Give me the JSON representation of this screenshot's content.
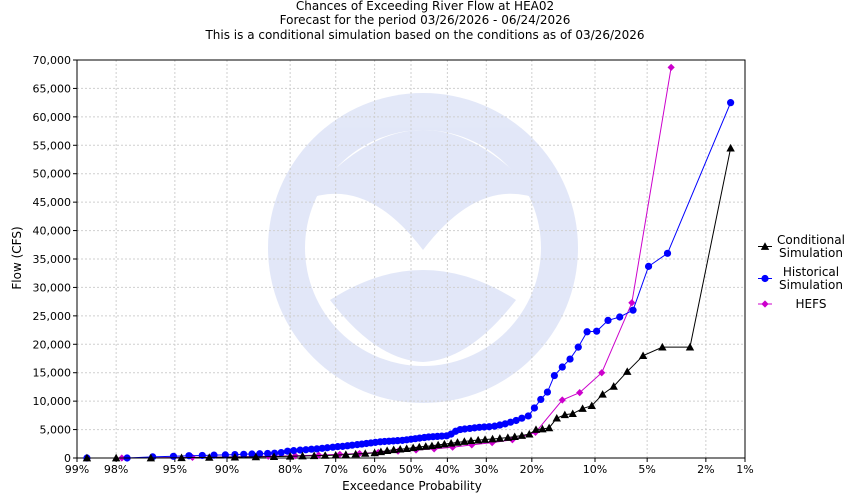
{
  "chart_data": {
    "type": "scatter",
    "title": "Chances of Exceeding River Flow at HEA02",
    "subtitle": "Forecast for the period 03/26/2026 - 06/24/2026",
    "subtitle2": "This is a conditional simulation based on the conditions as of 03/26/2026",
    "xlabel": "Exceedance Probability",
    "ylabel": "Flow (CFS)",
    "x_scale": "normal-probability",
    "x_ticks": [
      {
        "p": 99,
        "label": "99%"
      },
      {
        "p": 98,
        "label": "98%"
      },
      {
        "p": 95,
        "label": "95%"
      },
      {
        "p": 90,
        "label": "90%"
      },
      {
        "p": 80,
        "label": "80%"
      },
      {
        "p": 70,
        "label": "70%"
      },
      {
        "p": 60,
        "label": "60%"
      },
      {
        "p": 50,
        "label": "50%"
      },
      {
        "p": 40,
        "label": "40%"
      },
      {
        "p": 30,
        "label": "30%"
      },
      {
        "p": 20,
        "label": "20%"
      },
      {
        "p": 10,
        "label": "10%"
      },
      {
        "p": 5,
        "label": "5%"
      },
      {
        "p": 2,
        "label": "2%"
      },
      {
        "p": 1,
        "label": "1%"
      }
    ],
    "ylim": [
      0,
      70000
    ],
    "y_ticks": [
      {
        "v": 0,
        "label": "0"
      },
      {
        "v": 5000,
        "label": "5,000"
      },
      {
        "v": 10000,
        "label": "10,000"
      },
      {
        "v": 15000,
        "label": "15,000"
      },
      {
        "v": 20000,
        "label": "20,000"
      },
      {
        "v": 25000,
        "label": "25,000"
      },
      {
        "v": 30000,
        "label": "30,000"
      },
      {
        "v": 35000,
        "label": "35,000"
      },
      {
        "v": 40000,
        "label": "40,000"
      },
      {
        "v": 45000,
        "label": "45,000"
      },
      {
        "v": 50000,
        "label": "50,000"
      },
      {
        "v": 55000,
        "label": "55,000"
      },
      {
        "v": 60000,
        "label": "60,000"
      },
      {
        "v": 65000,
        "label": "65,000"
      },
      {
        "v": 70000,
        "label": "70,000"
      }
    ],
    "grid": true,
    "legend_position": "right",
    "series": [
      {
        "name": "Conditional Simulation",
        "legend_lines": [
          "Conditional",
          "Simulation"
        ],
        "color": "#000000",
        "marker": "triangle",
        "points": [
          [
            98.8,
            0
          ],
          [
            98.0,
            0
          ],
          [
            96.5,
            0
          ],
          [
            94.5,
            50
          ],
          [
            92.0,
            100
          ],
          [
            89.0,
            150
          ],
          [
            86.0,
            200
          ],
          [
            83.0,
            250
          ],
          [
            80.0,
            300
          ],
          [
            77.5,
            350
          ],
          [
            75.0,
            400
          ],
          [
            72.5,
            450
          ],
          [
            70.0,
            500
          ],
          [
            67.5,
            600
          ],
          [
            65.0,
            700
          ],
          [
            62.5,
            800
          ],
          [
            60.0,
            900
          ],
          [
            58.3,
            1100
          ],
          [
            56.6,
            1300
          ],
          [
            54.8,
            1450
          ],
          [
            53.0,
            1550
          ],
          [
            51.2,
            1650
          ],
          [
            49.4,
            1800
          ],
          [
            47.7,
            1950
          ],
          [
            45.9,
            2050
          ],
          [
            44.2,
            2150
          ],
          [
            42.5,
            2300
          ],
          [
            40.8,
            2450
          ],
          [
            39.0,
            2600
          ],
          [
            37.3,
            2750
          ],
          [
            35.5,
            2900
          ],
          [
            33.8,
            3050
          ],
          [
            32.0,
            3150
          ],
          [
            30.3,
            3250
          ],
          [
            28.5,
            3350
          ],
          [
            26.8,
            3450
          ],
          [
            25.0,
            3600
          ],
          [
            23.5,
            3750
          ],
          [
            22.0,
            3950
          ],
          [
            20.5,
            4200
          ],
          [
            19.2,
            5000
          ],
          [
            18.0,
            5100
          ],
          [
            16.8,
            5300
          ],
          [
            15.5,
            7000
          ],
          [
            14.2,
            7600
          ],
          [
            13.0,
            7800
          ],
          [
            11.6,
            8700
          ],
          [
            10.4,
            9200
          ],
          [
            9.1,
            11200
          ],
          [
            7.9,
            12600
          ],
          [
            6.6,
            15200
          ],
          [
            5.3,
            18000
          ],
          [
            4.0,
            19500
          ],
          [
            2.6,
            19500
          ],
          [
            1.3,
            54500
          ]
        ]
      },
      {
        "name": "Historical Simulation",
        "legend_lines": [
          "Historical",
          "Simulation"
        ],
        "color": "#0000ff",
        "marker": "circle",
        "points": [
          [
            98.8,
            0
          ],
          [
            97.6,
            0
          ],
          [
            96.4,
            200
          ],
          [
            95.1,
            300
          ],
          [
            93.9,
            400
          ],
          [
            92.7,
            450
          ],
          [
            91.5,
            500
          ],
          [
            90.2,
            550
          ],
          [
            89.0,
            600
          ],
          [
            87.8,
            650
          ],
          [
            86.6,
            700
          ],
          [
            85.4,
            750
          ],
          [
            84.1,
            800
          ],
          [
            82.9,
            850
          ],
          [
            81.7,
            950
          ],
          [
            80.5,
            1200
          ],
          [
            79.3,
            1300
          ],
          [
            78.0,
            1400
          ],
          [
            76.8,
            1450
          ],
          [
            75.6,
            1550
          ],
          [
            74.4,
            1600
          ],
          [
            73.2,
            1700
          ],
          [
            72.0,
            1800
          ],
          [
            70.7,
            1900
          ],
          [
            69.5,
            2000
          ],
          [
            68.3,
            2050
          ],
          [
            67.1,
            2150
          ],
          [
            65.9,
            2250
          ],
          [
            64.6,
            2350
          ],
          [
            63.4,
            2450
          ],
          [
            62.2,
            2550
          ],
          [
            61.0,
            2650
          ],
          [
            59.8,
            2750
          ],
          [
            58.5,
            2850
          ],
          [
            57.3,
            2900
          ],
          [
            56.1,
            2950
          ],
          [
            54.9,
            3000
          ],
          [
            53.7,
            3050
          ],
          [
            52.4,
            3100
          ],
          [
            51.2,
            3200
          ],
          [
            50.0,
            3300
          ],
          [
            48.8,
            3400
          ],
          [
            47.6,
            3500
          ],
          [
            46.3,
            3600
          ],
          [
            45.1,
            3700
          ],
          [
            43.9,
            3750
          ],
          [
            42.7,
            3800
          ],
          [
            41.5,
            3850
          ],
          [
            40.2,
            3900
          ],
          [
            39.0,
            4200
          ],
          [
            37.8,
            4700
          ],
          [
            36.6,
            5000
          ],
          [
            35.4,
            5100
          ],
          [
            34.1,
            5200
          ],
          [
            32.9,
            5300
          ],
          [
            31.7,
            5400
          ],
          [
            30.5,
            5450
          ],
          [
            29.3,
            5500
          ],
          [
            28.0,
            5600
          ],
          [
            26.8,
            5800
          ],
          [
            25.6,
            6000
          ],
          [
            24.4,
            6300
          ],
          [
            23.2,
            6600
          ],
          [
            22.0,
            7000
          ],
          [
            20.7,
            7400
          ],
          [
            19.5,
            8800
          ],
          [
            18.3,
            10300
          ],
          [
            17.1,
            11600
          ],
          [
            15.9,
            14500
          ],
          [
            14.6,
            16000
          ],
          [
            13.4,
            17400
          ],
          [
            12.2,
            19500
          ],
          [
            11.0,
            22200
          ],
          [
            9.8,
            22300
          ],
          [
            8.5,
            24200
          ],
          [
            7.3,
            24800
          ],
          [
            6.1,
            26000
          ],
          [
            4.9,
            33700
          ],
          [
            3.7,
            36000
          ],
          [
            1.3,
            62500
          ]
        ]
      },
      {
        "name": "HEFS",
        "legend_lines": [
          "HEFS"
        ],
        "color": "#cc00cc",
        "marker": "diamond",
        "points": [
          [
            97.8,
            0
          ],
          [
            93.6,
            100
          ],
          [
            89.0,
            200
          ],
          [
            84.0,
            300
          ],
          [
            79.0,
            400
          ],
          [
            74.0,
            500
          ],
          [
            69.0,
            650
          ],
          [
            64.0,
            800
          ],
          [
            59.0,
            1000
          ],
          [
            53.6,
            1200
          ],
          [
            48.6,
            1400
          ],
          [
            43.6,
            1600
          ],
          [
            38.6,
            1900
          ],
          [
            33.6,
            2300
          ],
          [
            28.6,
            2700
          ],
          [
            24.0,
            3200
          ],
          [
            19.3,
            4500
          ],
          [
            14.6,
            10200
          ],
          [
            12.0,
            11500
          ],
          [
            9.2,
            15000
          ],
          [
            6.2,
            27300
          ],
          [
            3.5,
            68700
          ]
        ]
      }
    ]
  }
}
